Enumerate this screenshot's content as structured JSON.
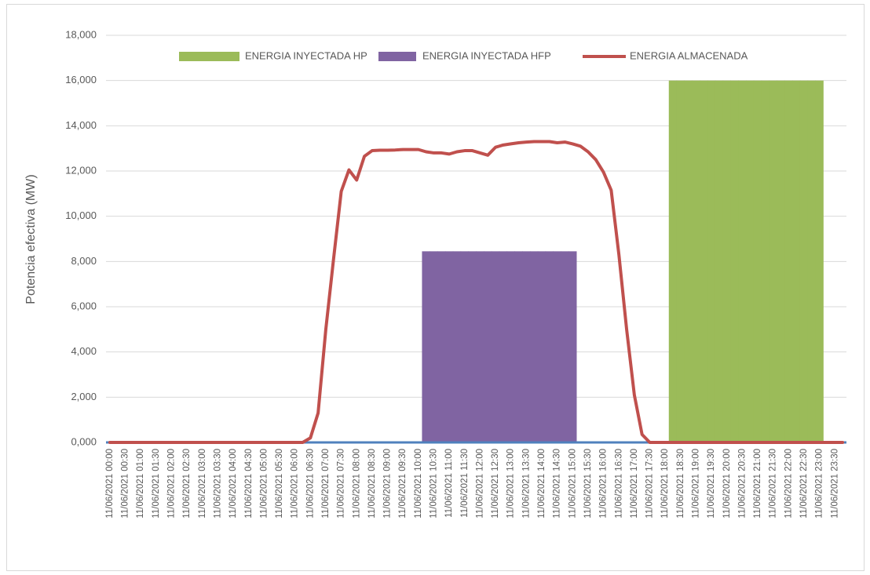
{
  "chart_data": {
    "type": "bar",
    "y_label": "Potencia efectiva (MW)",
    "categories": [
      "11/06/2021 00:00",
      null,
      "11/06/2021 00:30",
      null,
      "11/06/2021 01:00",
      null,
      "11/06/2021 01:30",
      null,
      "11/06/2021 02:00",
      null,
      "11/06/2021 02:30",
      null,
      "11/06/2021 03:00",
      null,
      "11/06/2021 03:30",
      null,
      "11/06/2021 04:00",
      null,
      "11/06/2021 04:30",
      null,
      "11/06/2021 05:00",
      null,
      "11/06/2021 05:30",
      null,
      "11/06/2021 06:00",
      null,
      "11/06/2021 06:30",
      null,
      "11/06/2021 07:00",
      null,
      "11/06/2021 07:30",
      null,
      "11/06/2021 08:00",
      null,
      "11/06/2021 08:30",
      null,
      "11/06/2021 09:00",
      null,
      "11/06/2021 09:30",
      null,
      "11/06/2021 10:00",
      null,
      "11/06/2021 10:30",
      null,
      "11/06/2021 11:00",
      null,
      "11/06/2021 11:30",
      null,
      "11/06/2021 12:00",
      null,
      "11/06/2021 12:30",
      null,
      "11/06/2021 13:00",
      null,
      "11/06/2021 13:30",
      null,
      "11/06/2021 14:00",
      null,
      "11/06/2021 14:30",
      null,
      "11/06/2021 15:00",
      null,
      "11/06/2021 15:30",
      null,
      "11/06/2021 16:00",
      null,
      "11/06/2021 16:30",
      null,
      "11/06/2021 17:00",
      null,
      "11/06/2021 17:30",
      null,
      "11/06/2021 18:00",
      null,
      "11/06/2021 18:30",
      null,
      "11/06/2021 19:00",
      null,
      "11/06/2021 19:30",
      null,
      "11/06/2021 20:00",
      null,
      "11/06/2021 20:30",
      null,
      "11/06/2021 21:00",
      null,
      "11/06/2021 21:30",
      null,
      "11/06/2021 22:00",
      null,
      "11/06/2021 22:30",
      null,
      "11/06/2021 23:00",
      null,
      "11/06/2021 23:30",
      null
    ],
    "series": [
      {
        "name": "ENERGIA INYECTADA HP",
        "type": "bar",
        "color": "#9bbb59",
        "values": [
          null,
          null,
          null,
          null,
          null,
          null,
          null,
          null,
          null,
          null,
          null,
          null,
          null,
          null,
          null,
          null,
          null,
          null,
          null,
          null,
          null,
          null,
          null,
          null,
          null,
          null,
          null,
          null,
          null,
          null,
          null,
          null,
          null,
          null,
          null,
          null,
          null,
          null,
          null,
          null,
          null,
          null,
          null,
          null,
          null,
          null,
          null,
          null,
          null,
          null,
          null,
          null,
          null,
          null,
          null,
          null,
          null,
          null,
          null,
          null,
          null,
          null,
          null,
          null,
          null,
          null,
          null,
          null,
          null,
          null,
          null,
          null,
          null,
          16000,
          16000,
          16000,
          16000,
          16000,
          16000,
          16000,
          16000,
          16000,
          16000,
          16000,
          16000,
          16000,
          16000,
          16000,
          16000,
          16000,
          16000,
          16000,
          16000,
          null,
          null,
          null
        ]
      },
      {
        "name": "ENERGIA INYECTADA HFP",
        "type": "bar",
        "color": "#8064a2",
        "values": [
          null,
          null,
          null,
          null,
          null,
          null,
          null,
          null,
          null,
          null,
          null,
          null,
          null,
          null,
          null,
          null,
          null,
          null,
          null,
          null,
          null,
          null,
          null,
          null,
          null,
          null,
          null,
          null,
          null,
          null,
          null,
          null,
          null,
          null,
          null,
          null,
          null,
          null,
          null,
          null,
          null,
          8450,
          8450,
          8450,
          8450,
          8450,
          8450,
          8450,
          8450,
          8450,
          8450,
          8450,
          8450,
          8450,
          8450,
          8450,
          8450,
          8450,
          8450,
          8450,
          8450,
          null,
          null,
          null,
          null,
          null,
          null,
          null,
          null,
          null,
          null,
          null,
          null,
          null,
          null,
          null,
          null,
          null,
          null,
          null,
          null,
          null,
          null,
          null,
          null,
          null,
          null,
          null,
          null,
          null,
          null,
          null,
          null,
          null,
          null,
          null
        ]
      },
      {
        "name": "ENERGIA ALMACENADA",
        "type": "line",
        "color": "#c0504d",
        "values": [
          0,
          0,
          0,
          0,
          0,
          0,
          0,
          0,
          0,
          0,
          0,
          0,
          0,
          0,
          0,
          0,
          0,
          0,
          0,
          0,
          0,
          0,
          0,
          0,
          0,
          0,
          200,
          1300,
          5000,
          8100,
          11100,
          12050,
          11600,
          12650,
          12900,
          12920,
          12920,
          12930,
          12950,
          12950,
          12950,
          12850,
          12800,
          12800,
          12750,
          12850,
          12900,
          12900,
          12800,
          12700,
          13050,
          13150,
          13200,
          13250,
          13280,
          13300,
          13300,
          13300,
          13250,
          13280,
          13200,
          13100,
          12850,
          12500,
          11950,
          11150,
          8300,
          5000,
          2100,
          350,
          0,
          0,
          0,
          0,
          0,
          0,
          0,
          0,
          0,
          0,
          0,
          0,
          0,
          0,
          0,
          0,
          0,
          0,
          0,
          0,
          0,
          0,
          0,
          0,
          0,
          0
        ]
      }
    ],
    "ylim": [
      0,
      18000
    ],
    "yticks": [
      {
        "value": 0,
        "label": "0,000"
      },
      {
        "value": 2000,
        "label": "2,000"
      },
      {
        "value": 4000,
        "label": "4,000"
      },
      {
        "value": 6000,
        "label": "6,000"
      },
      {
        "value": 8000,
        "label": "8,000"
      },
      {
        "value": 10000,
        "label": "10,000"
      },
      {
        "value": 12000,
        "label": "12,000"
      },
      {
        "value": 14000,
        "label": "14,000"
      },
      {
        "value": 16000,
        "label": "16,000"
      },
      {
        "value": 18000,
        "label": "18,000"
      }
    ],
    "grid": true,
    "legend": "top"
  }
}
